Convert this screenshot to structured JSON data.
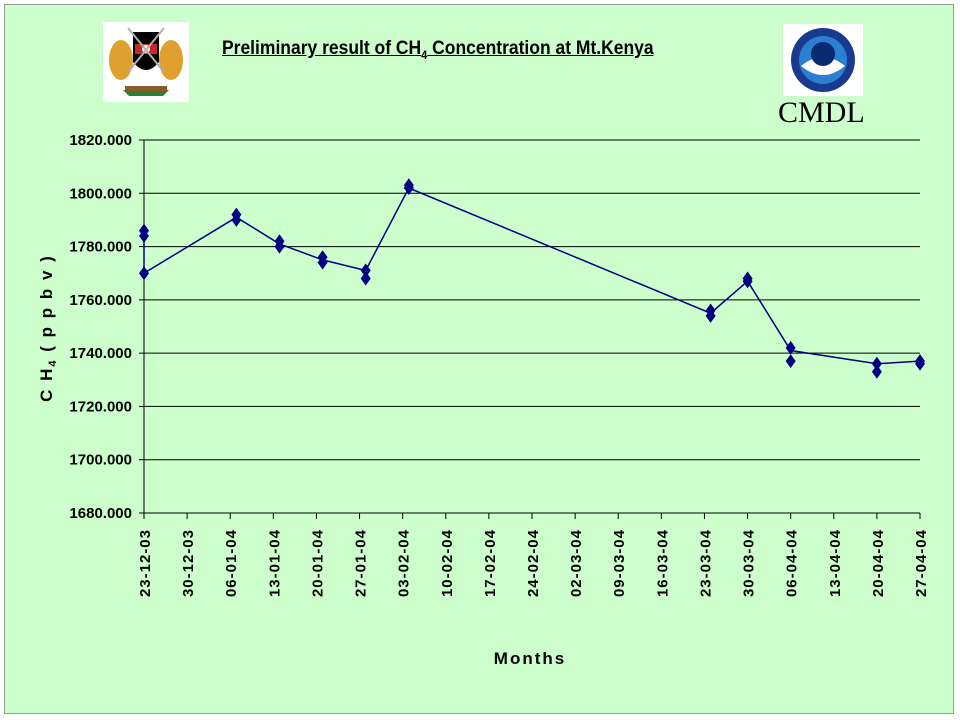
{
  "title": {
    "prefix": "Preliminary result of CH",
    "sub": "4",
    "suffix": " Concentration at Mt.Kenya"
  },
  "logos": {
    "left": "Kenya coat of arms",
    "right": "NOAA",
    "right_caption": "CMDL"
  },
  "colors": {
    "background": "#ccffcc",
    "series": "#000080",
    "grid": "#000000"
  },
  "chart_data": {
    "type": "line",
    "xlabel": "Months",
    "ylabel": "C H4 ( p p b v )",
    "ylim": [
      1680,
      1820
    ],
    "ytick_step": 20,
    "yticks": [
      "1680.000",
      "1700.000",
      "1720.000",
      "1740.000",
      "1760.000",
      "1780.000",
      "1800.000",
      "1820.000"
    ],
    "xlim": [
      "2003-12-23",
      "2004-04-27"
    ],
    "xticks": [
      "23-12-03",
      "30-12-03",
      "06-01-04",
      "13-01-04",
      "20-01-04",
      "27-01-04",
      "03-02-04",
      "10-02-04",
      "17-02-04",
      "24-02-04",
      "02-03-04",
      "09-03-04",
      "16-03-04",
      "23-03-04",
      "30-03-04",
      "06-04-04",
      "13-04-04",
      "20-04-04",
      "27-04-04"
    ],
    "grid": "horizontal",
    "series": [
      {
        "x": [
          "2003-12-23",
          "2003-12-23",
          "2003-12-23",
          "2004-01-07",
          "2004-01-07",
          "2004-01-14",
          "2004-01-14",
          "2004-01-21",
          "2004-01-21",
          "2004-01-28",
          "2004-01-28",
          "2004-02-04",
          "2004-02-04",
          "2004-03-24",
          "2004-03-24",
          "2004-03-30",
          "2004-03-30",
          "2004-04-06",
          "2004-04-06",
          "2004-04-20",
          "2004-04-20",
          "2004-04-27",
          "2004-04-27"
        ],
        "y": [
          1786,
          1784,
          1770,
          1792,
          1790,
          1782,
          1780,
          1776,
          1774,
          1771,
          1768,
          1803,
          1802,
          1756,
          1754,
          1768,
          1767,
          1742,
          1737,
          1736,
          1733,
          1737,
          1736
        ],
        "line_y": [
          1786,
          1784,
          1770,
          1791,
          1791,
          1781,
          1781,
          1775,
          1775,
          1771,
          1771,
          1802,
          1802,
          1755,
          1755,
          1767,
          1767,
          1741,
          1741,
          1736,
          1736,
          1737,
          1737
        ]
      }
    ]
  }
}
